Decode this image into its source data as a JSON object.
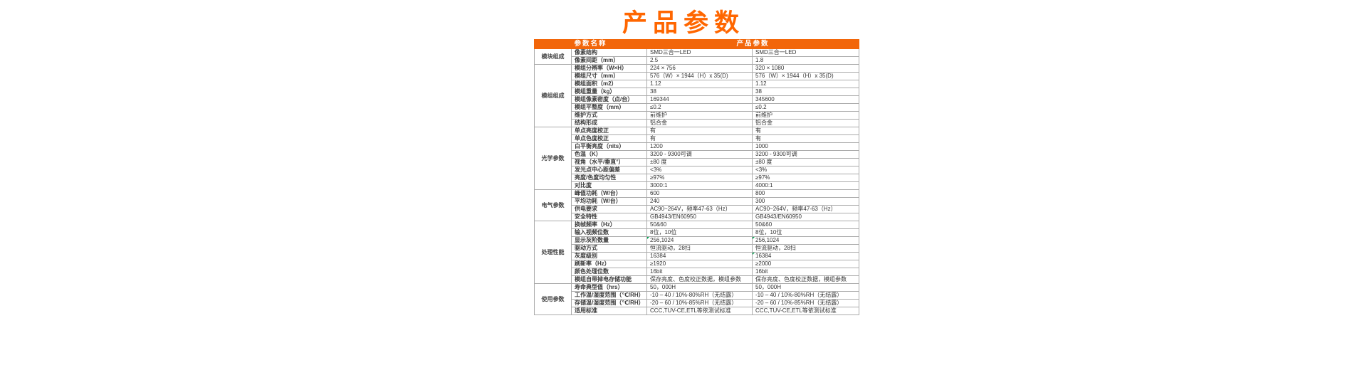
{
  "title": "产品参数",
  "colors": {
    "title": "#ff6600",
    "header_bg": "#f2660a",
    "header_text": "#ffffff",
    "border": "#ababab",
    "text": "#333333",
    "comment_marker_green": "#00a651"
  },
  "table": {
    "header": {
      "name_col": "参数名称",
      "value_col": "产品参数"
    },
    "groups": [
      {
        "name": "模块组成",
        "rows": [
          {
            "param": "像素结构",
            "v1": "SMD三合一LED",
            "v2": "SMD三合一LED"
          },
          {
            "param": "像素间距（mm）",
            "v1": "2.5",
            "v2": "1.8"
          }
        ]
      },
      {
        "name": "模组组成",
        "rows": [
          {
            "param": "模组分辨率（W×H）",
            "v1": "224 × 756",
            "v2": "320 × 1080"
          },
          {
            "param": "模组尺寸（mm）",
            "v1": "576（W）× 1944（H）x 35(D)",
            "v2": "576（W）× 1944（H）x 35(D)"
          },
          {
            "param": "模组面积（m2）",
            "v1": "1.12",
            "v2": "1.12"
          },
          {
            "param": "模组重量（kg）",
            "v1": "38",
            "v2": "38"
          },
          {
            "param": "模组像素密度（点/台）",
            "v1": "169344",
            "v2": "345600"
          },
          {
            "param": "模组平整度（mm）",
            "v1": "≤0.2",
            "v2": "≤0.2"
          },
          {
            "param": "维护方式",
            "v1": "前维护",
            "v2": "前维护"
          },
          {
            "param": "结构形成",
            "v1": "铝合金",
            "v2": "铝合金"
          }
        ]
      },
      {
        "name": "光学参数",
        "rows": [
          {
            "param": "单点亮度校正",
            "v1": "有",
            "v2": "有"
          },
          {
            "param": "单点色度校正",
            "v1": "有",
            "v2": "有"
          },
          {
            "param": "白平衡亮度（nits）",
            "v1": "1200",
            "v2": "1000"
          },
          {
            "param": "色温（K）",
            "v1": "3200 - 9300可调",
            "v2": "3200 - 9300可调"
          },
          {
            "param": "视角（水平/垂直°）",
            "v1": "±80 度",
            "v2": "±80 度"
          },
          {
            "param": "发光点中心距偏差",
            "v1": "<3%",
            "v2": "<3%"
          },
          {
            "param": "亮度/色度均匀性",
            "v1": "≥97%",
            "v2": "≥97%"
          },
          {
            "param": "对比度",
            "v1": "3000:1",
            "v2": "4000:1"
          }
        ]
      },
      {
        "name": "电气参数",
        "rows": [
          {
            "param": "峰值功耗（W/台）",
            "v1": "600",
            "v2": "800"
          },
          {
            "param": "平均功耗（W/台）",
            "v1": "240",
            "v2": "300"
          },
          {
            "param": "供电要求",
            "v1": "AC90~264V，频率47-63（Hz）",
            "v2": "AC90~264V，频率47-63（Hz）"
          },
          {
            "param": "安全特性",
            "v1": "GB4943/EN60950",
            "v2": "GB4943/EN60950"
          }
        ]
      },
      {
        "name": "处理性能",
        "rows": [
          {
            "param": "换帧频率（Hz）",
            "v1": "50&60",
            "v2": "50&60"
          },
          {
            "param": "输入视频位数",
            "v1": "8位，10位",
            "v2": "8位，10位"
          },
          {
            "param": "显示灰阶数量",
            "v1": "256,1024",
            "v2": "256,1024",
            "m1": true,
            "m2": true
          },
          {
            "param": "驱动方式",
            "v1": "恒流驱动，28扫",
            "v2": "恒流驱动，28扫"
          },
          {
            "param": "灰度级别",
            "v1": "16384",
            "v2": "16384",
            "m2": true
          },
          {
            "param": "刷新率（Hz）",
            "v1": "≥1920",
            "v2": "≥2000"
          },
          {
            "param": "颜色处理位数",
            "v1": "16bit",
            "v2": "16bit"
          },
          {
            "param": "模组自带掉电存储功能",
            "v1": "保存亮度、色度校正数据，模组参数",
            "v2": "保存亮度、色度校正数据，模组参数"
          }
        ]
      },
      {
        "name": "使用参数",
        "rows": [
          {
            "param": "寿命典型值（hrs）",
            "v1": "50，000H",
            "v2": "50，000H"
          },
          {
            "param": "工作温/湿度范围（℃/RH）",
            "v1": "-10 – 40 / 10%-80%RH（无结露）",
            "v2": "-10 – 40 / 10%-80%RH（无结露）"
          },
          {
            "param": "存储温/湿度范围（℃/RH）",
            "v1": "-20 – 60 / 10%-85%RH（无结露）",
            "v2": "-20 – 60 / 10%-85%RH（无结露）"
          },
          {
            "param": "适用标准",
            "v1": "CCC,TUV-CE,ETL等依测试标准",
            "v2": "CCC,TUV-CE,ETL等依测试标准"
          }
        ]
      }
    ]
  }
}
